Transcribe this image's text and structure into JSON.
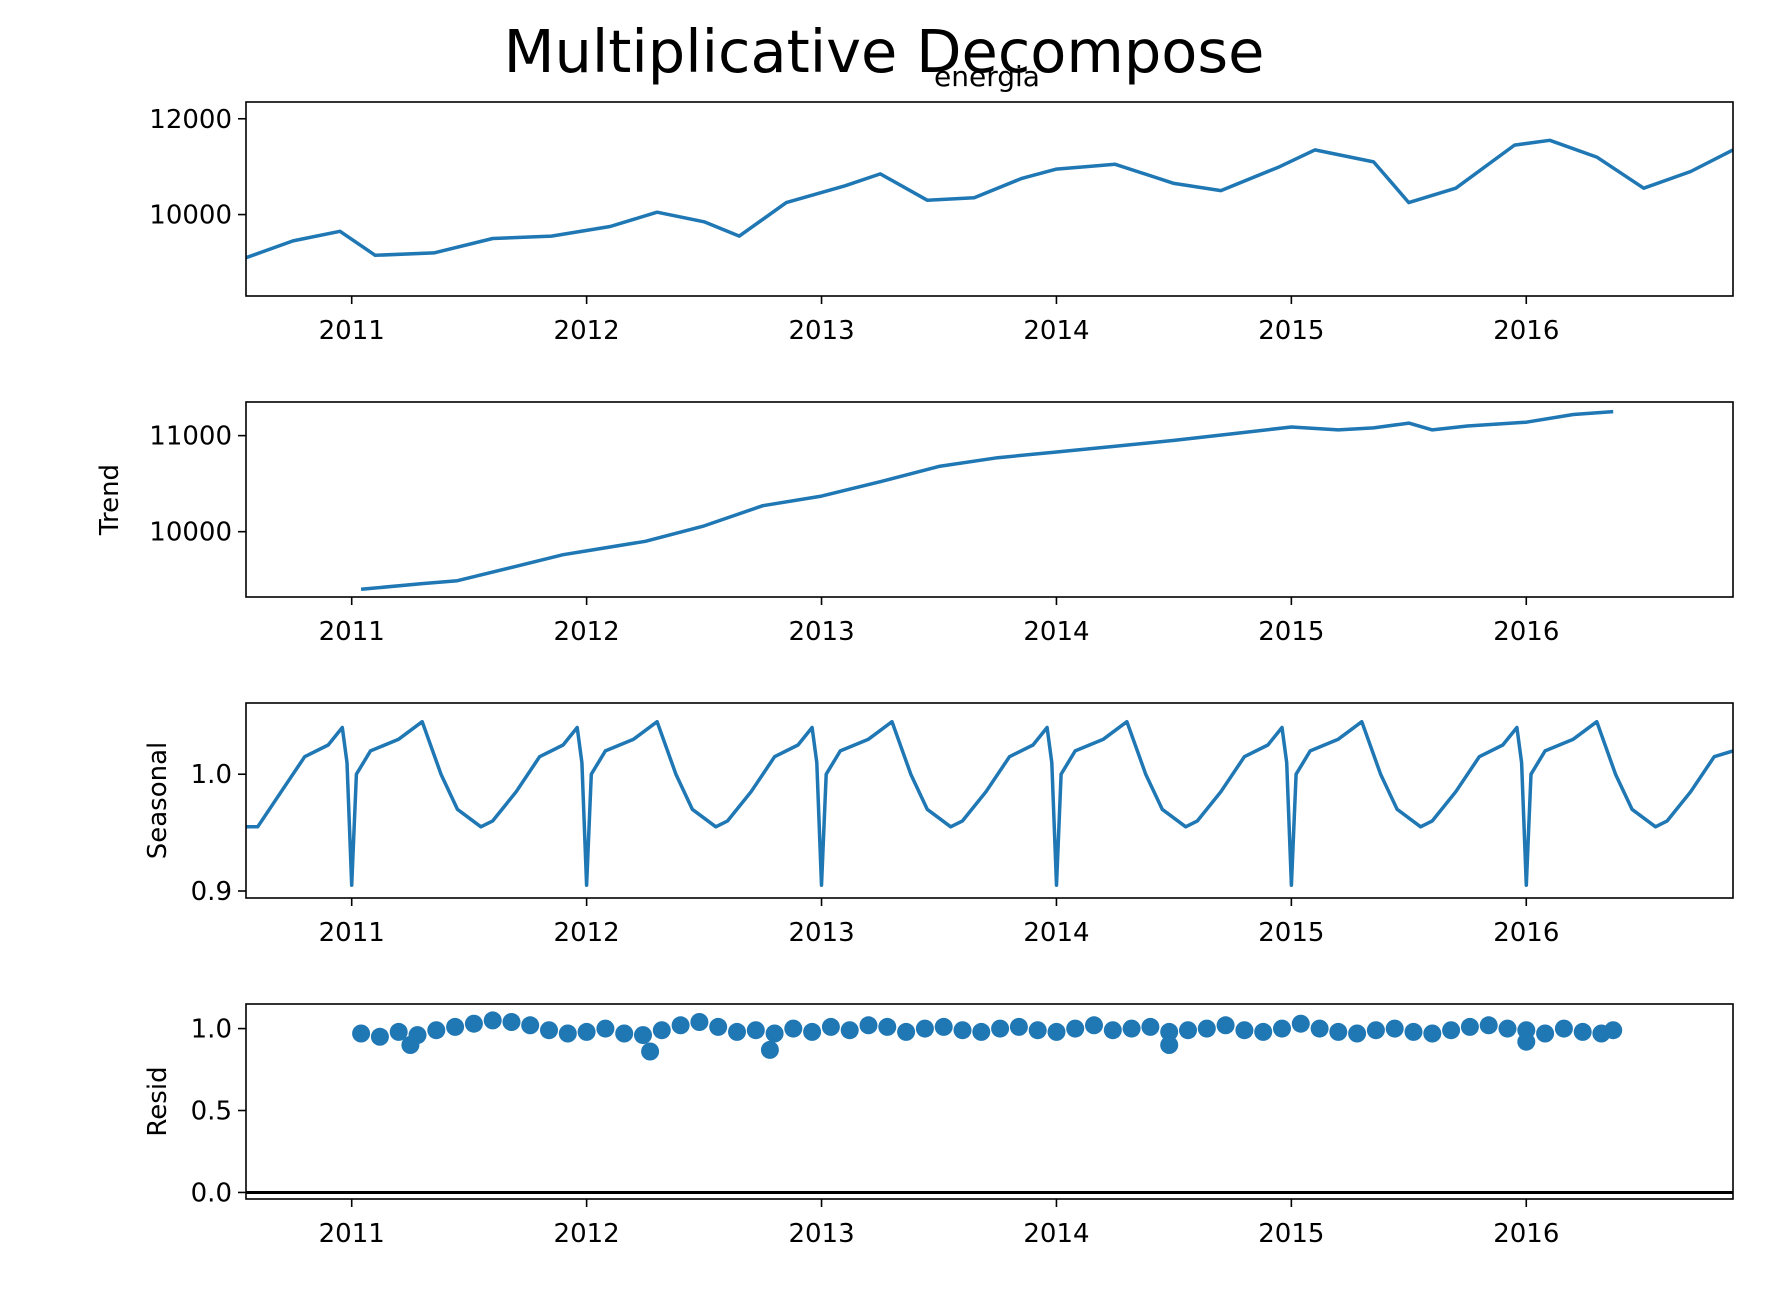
{
  "figure": {
    "title": "Multiplicative Decompose",
    "series_color": "#1f77b4"
  },
  "chart_data": [
    {
      "type": "line",
      "title": "energia",
      "ylabel": "",
      "xlim": [
        2010.55,
        2016.88
      ],
      "ylim": [
        8300,
        12350
      ],
      "yticks": [
        10000,
        12000
      ],
      "ytick_labels": [
        "10000",
        "12000"
      ],
      "xticks": [
        2011,
        2012,
        2013,
        2014,
        2015,
        2016
      ],
      "xtick_labels": [
        "2011",
        "2012",
        "2013",
        "2014",
        "2015",
        "2016"
      ],
      "series": [
        {
          "x": [
            2010.55,
            2010.75,
            2010.95,
            2011.1,
            2011.35,
            2011.6,
            2011.85,
            2012.1,
            2012.3,
            2012.5,
            2012.65,
            2012.85,
            2013.1,
            2013.25,
            2013.45,
            2013.65,
            2013.85,
            2014.0,
            2014.25,
            2014.5,
            2014.7,
            2014.95,
            2015.1,
            2015.35,
            2015.5,
            2015.7,
            2015.95,
            2016.1,
            2016.3,
            2016.5,
            2016.7,
            2016.88
          ],
          "values": [
            9100,
            9450,
            9650,
            9150,
            9200,
            9500,
            9550,
            9750,
            10050,
            9850,
            9550,
            10250,
            10600,
            10850,
            10300,
            10350,
            10750,
            10950,
            11050,
            10650,
            10500,
            11000,
            11350,
            11100,
            10250,
            10550,
            11450,
            11550,
            11200,
            10550,
            10900,
            11350
          ]
        }
      ]
    },
    {
      "type": "line",
      "title": "",
      "ylabel": "Trend",
      "xlim": [
        2010.55,
        2016.88
      ],
      "ylim": [
        9320,
        11350
      ],
      "yticks": [
        10000,
        11000
      ],
      "ytick_labels": [
        "10000",
        "11000"
      ],
      "xticks": [
        2011,
        2012,
        2013,
        2014,
        2015,
        2016
      ],
      "xtick_labels": [
        "2011",
        "2012",
        "2013",
        "2014",
        "2015",
        "2016"
      ],
      "series": [
        {
          "x": [
            2011.04,
            2011.3,
            2011.45,
            2011.7,
            2011.9,
            2012.0,
            2012.25,
            2012.5,
            2012.75,
            2013.0,
            2013.25,
            2013.5,
            2013.75,
            2014.0,
            2014.25,
            2014.5,
            2014.75,
            2015.0,
            2015.2,
            2015.35,
            2015.5,
            2015.6,
            2015.75,
            2016.0,
            2016.2,
            2016.37
          ],
          "values": [
            9400,
            9460,
            9490,
            9640,
            9760,
            9800,
            9900,
            10060,
            10270,
            10370,
            10520,
            10680,
            10770,
            10830,
            10890,
            10950,
            11020,
            11090,
            11060,
            11080,
            11130,
            11060,
            11100,
            11140,
            11220,
            11250
          ]
        }
      ]
    },
    {
      "type": "line",
      "title": "",
      "ylabel": "Seasonal",
      "xlim": [
        2010.55,
        2016.88
      ],
      "ylim": [
        0.894,
        1.061
      ],
      "yticks": [
        0.9,
        1.0
      ],
      "ytick_labels": [
        "0.9",
        "1.0"
      ],
      "xticks": [
        2011,
        2012,
        2013,
        2014,
        2015,
        2016
      ],
      "xtick_labels": [
        "2011",
        "2012",
        "2013",
        "2014",
        "2015",
        "2016"
      ],
      "series": [
        {
          "x": [
            2010.55,
            2010.6,
            2010.7,
            2010.8,
            2010.9,
            2010.96,
            2010.98,
            2011.0,
            2011.02,
            2011.08,
            2011.2,
            2011.3,
            2011.38,
            2011.45,
            2011.55,
            2011.6,
            2011.7,
            2011.8,
            2011.9,
            2011.96,
            2011.98,
            2012.0,
            2012.02,
            2012.08,
            2012.2,
            2012.3,
            2012.38,
            2012.45,
            2012.55,
            2012.6,
            2012.7,
            2012.8,
            2012.9,
            2012.96,
            2012.98,
            2013.0,
            2013.02,
            2013.08,
            2013.2,
            2013.3,
            2013.38,
            2013.45,
            2013.55,
            2013.6,
            2013.7,
            2013.8,
            2013.9,
            2013.96,
            2013.98,
            2014.0,
            2014.02,
            2014.08,
            2014.2,
            2014.3,
            2014.38,
            2014.45,
            2014.55,
            2014.6,
            2014.7,
            2014.8,
            2014.9,
            2014.96,
            2014.98,
            2015.0,
            2015.02,
            2015.08,
            2015.2,
            2015.3,
            2015.38,
            2015.45,
            2015.55,
            2015.6,
            2015.7,
            2015.8,
            2015.9,
            2015.96,
            2015.98,
            2016.0,
            2016.02,
            2016.08,
            2016.2,
            2016.3,
            2016.38,
            2016.45,
            2016.55,
            2016.6,
            2016.7,
            2016.8,
            2016.88
          ],
          "values": [
            0.955,
            0.955,
            0.985,
            1.015,
            1.025,
            1.04,
            1.01,
            0.905,
            1.0,
            1.02,
            1.03,
            1.045,
            1.0,
            0.97,
            0.955,
            0.96,
            0.985,
            1.015,
            1.025,
            1.04,
            1.01,
            0.905,
            1.0,
            1.02,
            1.03,
            1.045,
            1.0,
            0.97,
            0.955,
            0.96,
            0.985,
            1.015,
            1.025,
            1.04,
            1.01,
            0.905,
            1.0,
            1.02,
            1.03,
            1.045,
            1.0,
            0.97,
            0.955,
            0.96,
            0.985,
            1.015,
            1.025,
            1.04,
            1.01,
            0.905,
            1.0,
            1.02,
            1.03,
            1.045,
            1.0,
            0.97,
            0.955,
            0.96,
            0.985,
            1.015,
            1.025,
            1.04,
            1.01,
            0.905,
            1.0,
            1.02,
            1.03,
            1.045,
            1.0,
            0.97,
            0.955,
            0.96,
            0.985,
            1.015,
            1.025,
            1.04,
            1.01,
            0.905,
            1.0,
            1.02,
            1.03,
            1.045,
            1.0,
            0.97,
            0.955,
            0.96,
            0.985,
            1.015,
            1.02
          ]
        }
      ]
    },
    {
      "type": "scatter",
      "title": "",
      "ylabel": "Resid",
      "xlim": [
        2010.55,
        2016.88
      ],
      "ylim": [
        -0.04,
        1.15
      ],
      "yticks": [
        0.0,
        0.5,
        1.0
      ],
      "ytick_labels": [
        "0.0",
        "0.5",
        "1.0"
      ],
      "xticks": [
        2011,
        2012,
        2013,
        2014,
        2015,
        2016
      ],
      "xtick_labels": [
        "2011",
        "2012",
        "2013",
        "2014",
        "2015",
        "2016"
      ],
      "hline": 0,
      "series": [
        {
          "x": [
            2011.04,
            2011.12,
            2011.2,
            2011.28,
            2011.36,
            2011.44,
            2011.52,
            2011.6,
            2011.68,
            2011.76,
            2011.84,
            2011.92,
            2012.0,
            2012.08,
            2012.16,
            2012.24,
            2012.32,
            2012.4,
            2012.48,
            2012.56,
            2012.64,
            2012.72,
            2012.8,
            2012.88,
            2012.96,
            2013.04,
            2013.12,
            2013.2,
            2013.28,
            2013.36,
            2013.44,
            2013.52,
            2013.6,
            2013.68,
            2013.76,
            2013.84,
            2013.92,
            2014.0,
            2014.08,
            2014.16,
            2014.24,
            2014.32,
            2014.4,
            2014.48,
            2014.56,
            2014.64,
            2014.72,
            2014.8,
            2014.88,
            2014.96,
            2015.04,
            2015.12,
            2015.2,
            2015.28,
            2015.36,
            2015.44,
            2015.52,
            2015.6,
            2015.68,
            2015.76,
            2015.84,
            2015.92,
            2016.0,
            2016.08,
            2016.16,
            2016.24,
            2016.32,
            2016.37,
            2011.25,
            2012.27,
            2012.78,
            2014.48,
            2016.0
          ],
          "values": [
            0.97,
            0.95,
            0.98,
            0.96,
            0.99,
            1.01,
            1.03,
            1.05,
            1.04,
            1.02,
            0.99,
            0.97,
            0.98,
            1.0,
            0.97,
            0.96,
            0.99,
            1.02,
            1.04,
            1.01,
            0.98,
            0.99,
            0.97,
            1.0,
            0.98,
            1.01,
            0.99,
            1.02,
            1.01,
            0.98,
            1.0,
            1.01,
            0.99,
            0.98,
            1.0,
            1.01,
            0.99,
            0.98,
            1.0,
            1.02,
            0.99,
            1.0,
            1.01,
            0.98,
            0.99,
            1.0,
            1.02,
            0.99,
            0.98,
            1.0,
            1.03,
            1.0,
            0.98,
            0.97,
            0.99,
            1.0,
            0.98,
            0.97,
            0.99,
            1.01,
            1.02,
            1.0,
            0.99,
            0.97,
            1.0,
            0.98,
            0.97,
            0.99,
            0.9,
            0.86,
            0.87,
            0.9,
            0.92
          ]
        }
      ]
    }
  ]
}
